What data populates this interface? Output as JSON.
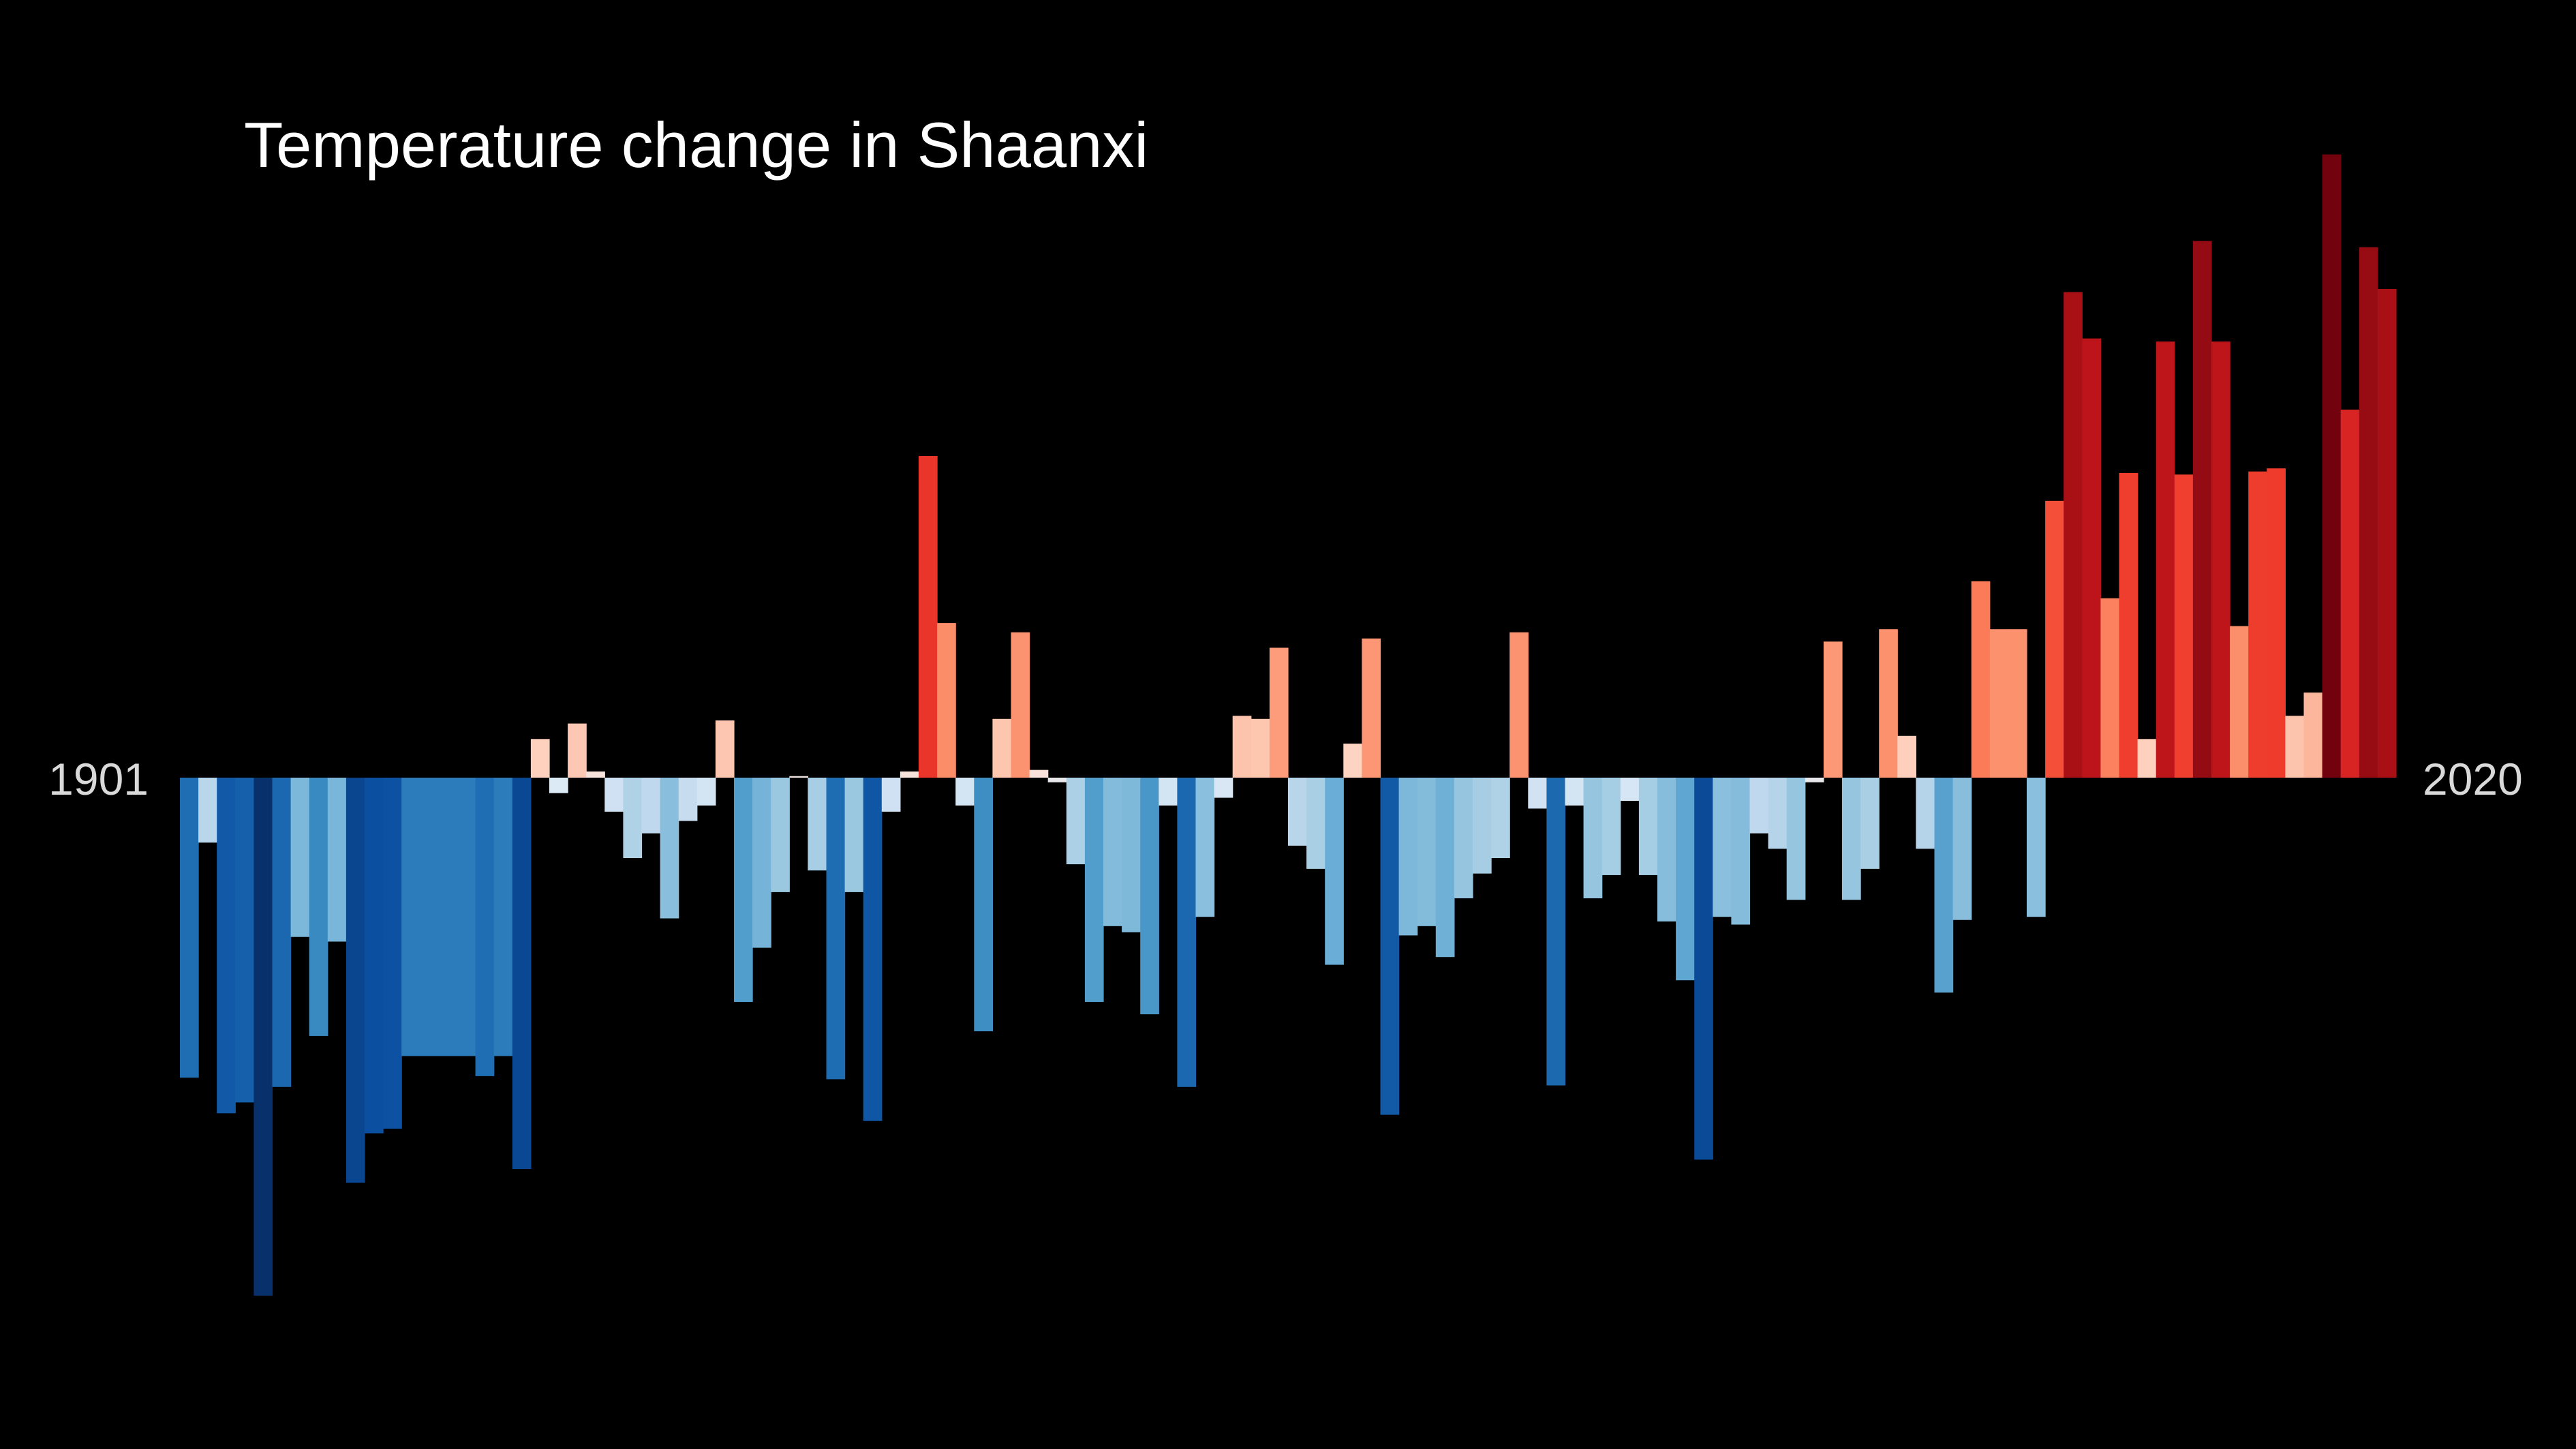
{
  "chart_data": {
    "type": "bar",
    "title": "Temperature change in Shaanxi",
    "xlabel": "",
    "ylabel": "",
    "start_label": "1901",
    "end_label": "2020",
    "x": [
      1901,
      1902,
      1903,
      1904,
      1905,
      1906,
      1907,
      1908,
      1909,
      1910,
      1911,
      1912,
      1913,
      1914,
      1915,
      1916,
      1917,
      1918,
      1919,
      1920,
      1921,
      1922,
      1923,
      1924,
      1925,
      1926,
      1927,
      1928,
      1929,
      1930,
      1931,
      1932,
      1933,
      1934,
      1935,
      1936,
      1937,
      1938,
      1939,
      1940,
      1941,
      1942,
      1943,
      1944,
      1945,
      1946,
      1947,
      1948,
      1949,
      1950,
      1951,
      1952,
      1953,
      1954,
      1955,
      1956,
      1957,
      1958,
      1959,
      1960,
      1961,
      1962,
      1963,
      1964,
      1965,
      1966,
      1967,
      1968,
      1969,
      1970,
      1971,
      1972,
      1973,
      1974,
      1975,
      1976,
      1977,
      1978,
      1979,
      1980,
      1981,
      1982,
      1983,
      1984,
      1985,
      1986,
      1987,
      1988,
      1989,
      1990,
      1991,
      1992,
      1993,
      1994,
      1995,
      1996,
      1997,
      1998,
      1999,
      2000,
      2001,
      2002,
      2003,
      2004,
      2005,
      2006,
      2007,
      2008,
      2009,
      2010,
      2011,
      2012,
      2013,
      2014,
      2015,
      2016,
      2017,
      2018,
      2019,
      2020
    ],
    "values": [
      -1.94,
      -0.42,
      -2.17,
      -2.1,
      -3.35,
      -2.0,
      -1.03,
      -1.67,
      -1.06,
      -2.62,
      -2.3,
      -2.27,
      -1.8,
      -1.8,
      -1.8,
      -1.8,
      -1.93,
      -1.8,
      -2.53,
      0.25,
      -0.1,
      0.35,
      0.04,
      -0.22,
      -0.52,
      -0.36,
      -0.91,
      -0.28,
      -0.18,
      0.37,
      -1.45,
      -1.1,
      -0.74,
      0.01,
      -0.6,
      -1.95,
      -0.74,
      -2.22,
      -0.22,
      0.04,
      2.08,
      1.0,
      -0.18,
      -1.64,
      0.38,
      0.94,
      0.05,
      -0.03,
      -0.56,
      -1.45,
      -0.96,
      -1.0,
      -1.53,
      -0.18,
      -2.0,
      -0.9,
      -0.13,
      0.4,
      0.38,
      0.84,
      -0.44,
      -0.59,
      -1.21,
      0.22,
      0.9,
      -2.18,
      -1.02,
      -0.96,
      -1.16,
      -0.78,
      -0.62,
      -0.52,
      0.94,
      -0.2,
      -1.99,
      -0.18,
      -0.78,
      -0.63,
      -0.15,
      -0.63,
      -0.93,
      -1.31,
      -2.47,
      -0.9,
      -0.95,
      -0.36,
      -0.46,
      -0.79,
      -0.03,
      0.88,
      -0.79,
      -0.59,
      0.96,
      0.27,
      -0.46,
      -1.39,
      -0.92,
      1.27,
      0.96,
      0.96,
      -0.9,
      1.79,
      3.14,
      2.84,
      1.16,
      1.97,
      0.25,
      2.82,
      1.96,
      3.47,
      2.82,
      0.98,
      1.98,
      2.0,
      0.4,
      0.55,
      4.03,
      2.38,
      3.43,
      3.16
    ],
    "ylim": [
      -3.6,
      4.2
    ],
    "grid": false,
    "legend": "none",
    "color_scale": "red-blue diverging (warm years red, cool years blue)",
    "background_color": "#000000",
    "title_color": "#ffffff",
    "label_color": "#d9d9d9"
  }
}
